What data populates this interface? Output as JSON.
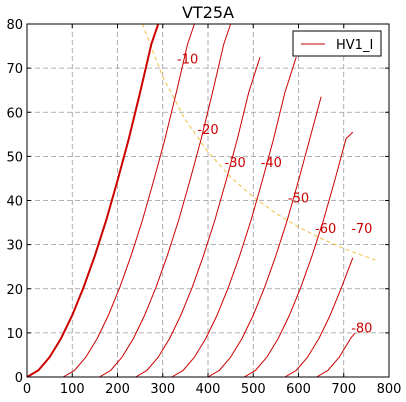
{
  "chart_data": {
    "type": "line",
    "title": "VT25A",
    "xlabel": "",
    "ylabel": "",
    "xlim": [
      0,
      800
    ],
    "ylim": [
      0,
      80
    ],
    "xticks": [
      0,
      100,
      200,
      300,
      400,
      500,
      600,
      700,
      800
    ],
    "yticks": [
      0,
      10,
      20,
      30,
      40,
      50,
      60,
      70,
      80
    ],
    "grid": true,
    "legend": {
      "position": "top-right",
      "entries": [
        "HV1_I"
      ]
    },
    "series": [
      {
        "name": "HV1_I",
        "grid_voltage": 0,
        "bold": true,
        "x": [
          0,
          25,
          50,
          75,
          100,
          125,
          150,
          175,
          200,
          225,
          250,
          275,
          290
        ],
        "y": [
          0,
          1.5,
          4.5,
          8.7,
          14,
          20.3,
          27.5,
          35.5,
          44.5,
          54,
          64.5,
          75.5,
          80
        ]
      },
      {
        "grid_voltage": -10,
        "x": [
          80,
          105,
          130,
          155,
          180,
          205,
          230,
          255,
          280,
          305,
          330,
          355,
          370
        ],
        "y": [
          0,
          1.5,
          4.5,
          8.7,
          14,
          20.3,
          27.5,
          35.5,
          44.5,
          54,
          64.5,
          75.5,
          80
        ]
      },
      {
        "grid_voltage": -20,
        "x": [
          160,
          185,
          210,
          235,
          260,
          285,
          310,
          335,
          360,
          385,
          410,
          435,
          450
        ],
        "y": [
          0,
          1.5,
          4.5,
          8.7,
          14,
          20.3,
          27.5,
          35.5,
          44.5,
          54,
          64.5,
          75.5,
          80
        ]
      },
      {
        "grid_voltage": -30,
        "x": [
          240,
          265,
          290,
          315,
          340,
          365,
          390,
          415,
          440,
          465,
          490,
          515
        ],
        "y": [
          0,
          1.5,
          4.5,
          8.7,
          14,
          20.3,
          27.5,
          35.5,
          44.5,
          54,
          64.5,
          72.5
        ]
      },
      {
        "grid_voltage": -40,
        "x": [
          320,
          345,
          370,
          395,
          420,
          445,
          470,
          495,
          520,
          545,
          570,
          595
        ],
        "y": [
          0,
          1.5,
          4.5,
          8.7,
          14,
          20.3,
          27.5,
          35.5,
          44.5,
          54,
          64.5,
          72.5
        ]
      },
      {
        "grid_voltage": -50,
        "x": [
          400,
          425,
          450,
          475,
          500,
          525,
          550,
          575,
          600,
          625,
          650
        ],
        "y": [
          0,
          1.5,
          4.5,
          8.7,
          14,
          20.3,
          27.5,
          35.5,
          44.5,
          54,
          63.5
        ]
      },
      {
        "grid_voltage": -60,
        "x": [
          480,
          505,
          530,
          555,
          580,
          605,
          630,
          655,
          680,
          705,
          720
        ],
        "y": [
          0,
          1.5,
          4.5,
          8.7,
          14,
          20.3,
          27.5,
          35.5,
          44.5,
          54,
          55.5
        ]
      },
      {
        "grid_voltage": -70,
        "x": [
          570,
          595,
          620,
          645,
          670,
          695,
          720
        ],
        "y": [
          0,
          1.5,
          4.5,
          8.7,
          14,
          20.3,
          27
        ]
      },
      {
        "grid_voltage": -80,
        "x": [
          640,
          665,
          690,
          715,
          725
        ],
        "y": [
          0,
          1.5,
          4.5,
          8.7,
          10
        ]
      }
    ],
    "dissipation_curve": {
      "x": [
        255,
        300,
        350,
        400,
        450,
        500,
        550,
        600,
        650,
        700,
        770
      ],
      "y": [
        80,
        68,
        58.3,
        51,
        45.3,
        40.8,
        37.1,
        34,
        31.4,
        29.1,
        26.5
      ]
    },
    "annotations": [
      {
        "text": "-10",
        "x": 355,
        "y": 72
      },
      {
        "text": "-20",
        "x": 400,
        "y": 56
      },
      {
        "text": "-30",
        "x": 460,
        "y": 48.5
      },
      {
        "text": "-40",
        "x": 540,
        "y": 48.5
      },
      {
        "text": "-50",
        "x": 600,
        "y": 40.5
      },
      {
        "text": "-60",
        "x": 660,
        "y": 33.5
      },
      {
        "text": "-70",
        "x": 740,
        "y": 33.5
      },
      {
        "text": "-80",
        "x": 740,
        "y": 11
      }
    ],
    "colors": {
      "curve": "#cc0000",
      "dissipation": "#f0c040",
      "grid": "#999999"
    }
  }
}
